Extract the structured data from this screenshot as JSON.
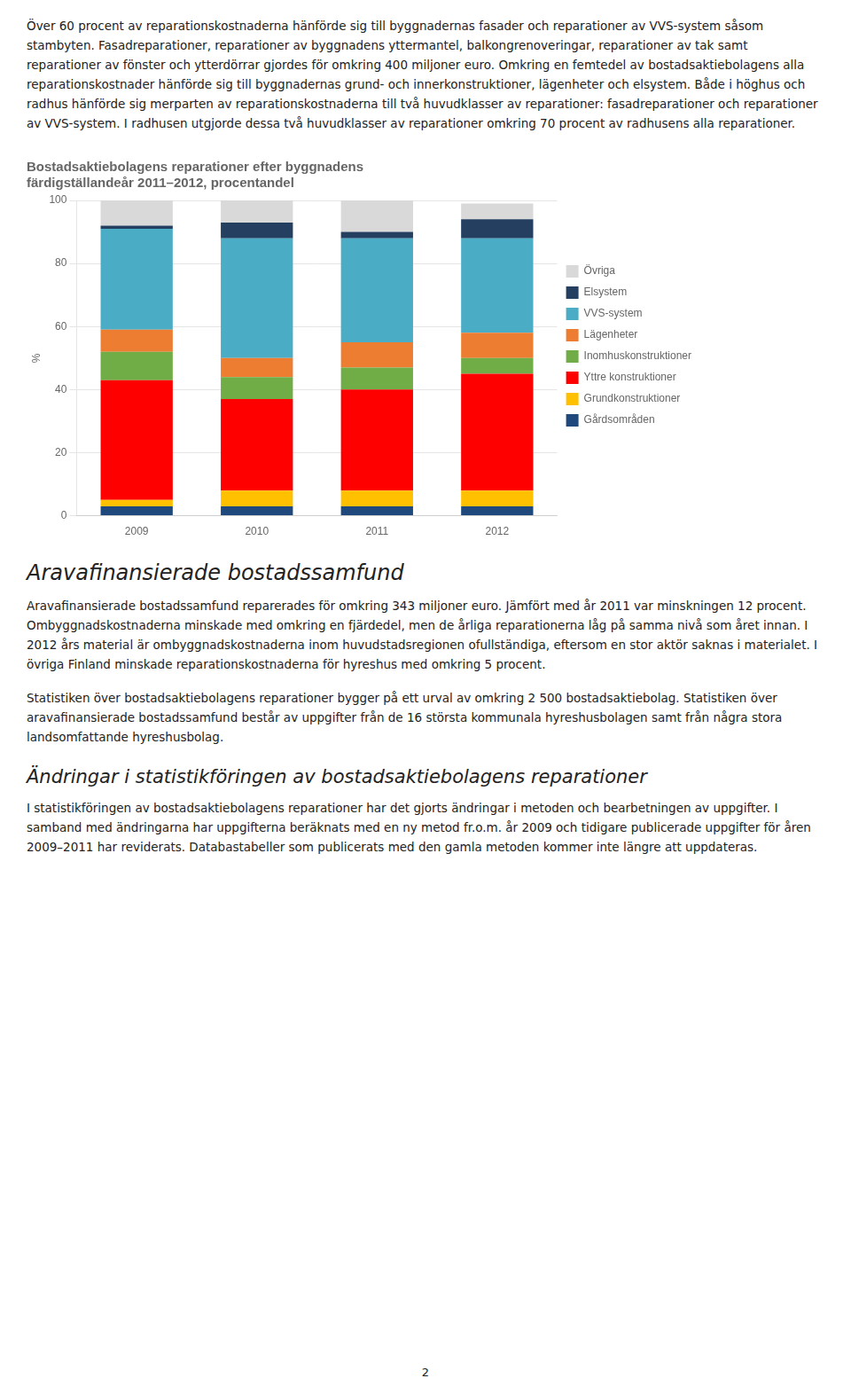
{
  "body_text": "Över 60 procent av reparationskostnaderna hänförde sig till byggnadernas fasader och reparationer av VVS-system såsom stambyten. Fasadreparationer, reparationer av byggnadens yttermantel, balkongrenoveringar, reparationer av tak samt reparationer av fönster och ytterdörrar gjordes för omkring 400 miljoner euro. Omkring en femtedel av bostadsaktiebolagens alla reparationskostnader hänförde sig till byggnadernas grund- och innerkonstruktioner, lägenheter och elsystem. Både i höghus och radhus hänförde sig merparten av reparationskostnaderna till två huvudklasser av reparationer: fasadreparationer och reparationer av VVS-system. I radhusen utgjorde dessa två huvudklasser av reparationer omkring 70 procent av radhusens alla reparationer.",
  "chart_data": {
    "type": "bar",
    "title": [
      "Bostadsaktiebolagens reparationer efter byggnadens",
      "färdigställandeår 2011–2012, procentandel"
    ],
    "ylabel": "%",
    "categories": [
      "2009",
      "2010",
      "2011",
      "2012"
    ],
    "stacked": true,
    "series": [
      {
        "name": "Gårdsområden",
        "color": "#1f497d",
        "values": [
          3,
          3,
          3,
          3
        ]
      },
      {
        "name": "Grundkonstruktioner",
        "color": "#ffc000",
        "values": [
          2,
          5,
          5,
          5
        ]
      },
      {
        "name": "Yttre konstruktioner",
        "color": "#ff0000",
        "values": [
          38,
          29,
          32,
          37
        ]
      },
      {
        "name": "Inomhuskonstruktioner",
        "color": "#70ad47",
        "values": [
          9,
          7,
          7,
          5
        ]
      },
      {
        "name": "Lägenheter",
        "color": "#ed7d31",
        "values": [
          7,
          6,
          8,
          8
        ]
      },
      {
        "name": "VVS-system",
        "color": "#4bacc6",
        "values": [
          32,
          38,
          33,
          30
        ]
      },
      {
        "name": "Elsystem",
        "color": "#243f60",
        "values": [
          1,
          5,
          2,
          6
        ]
      },
      {
        "name": "Övriga",
        "color": "#d9d9d9",
        "values": [
          8,
          7,
          10,
          5
        ]
      }
    ],
    "ylim": [
      0,
      100
    ],
    "yticks": [
      0,
      20,
      40,
      60,
      80,
      100
    ],
    "grid": true,
    "legend": "right"
  },
  "arava_title": "Aravafinansierade bostadssamfund",
  "arava_body": "Aravafinansierade bostadssamfund reparerades för omkring 343 miljoner euro. Jämfört med år 2011 var minskningen 12 procent. Ombyggnadskostnaderna minskade med omkring en fjärdedel, men de årliga reparationerna låg på samma nivå som året innan. I 2012 års material är ombyggnadskostnaderna inom huvudstadsregionen ofullständiga, eftersom en stor aktör saknas i materialet. I övriga Finland minskade reparationskostnaderna för hyreshus med omkring 5 procent.",
  "stat_text": "Statistiken över bostadsaktiebolagens reparationer bygger på ett urval av omkring 2 500 bostadsaktiebolag. Statistiken över aravafinansierade bostadssamfund består av uppgifter från de 16 största kommunala hyreshusbolagen samt från några stora landsomfattande hyreshusbolag.",
  "andr_title": "Ändringar i statistikföringen av bostadsaktiebolagens reparationer",
  "andr_body": "I statistikföringen av bostadsaktiebolagens reparationer har det gjorts ändringar i metoden och bearbetningen av uppgifter. I samband med ändringarna har uppgifterna beräknats med en ny metod fr.o.m. år 2009 och tidigare publicerade uppgifter för åren 2009–2011 har reviderats. Databastabeller som publicerats med den gamla metoden kommer inte längre att uppdateras.",
  "page_num": "2"
}
